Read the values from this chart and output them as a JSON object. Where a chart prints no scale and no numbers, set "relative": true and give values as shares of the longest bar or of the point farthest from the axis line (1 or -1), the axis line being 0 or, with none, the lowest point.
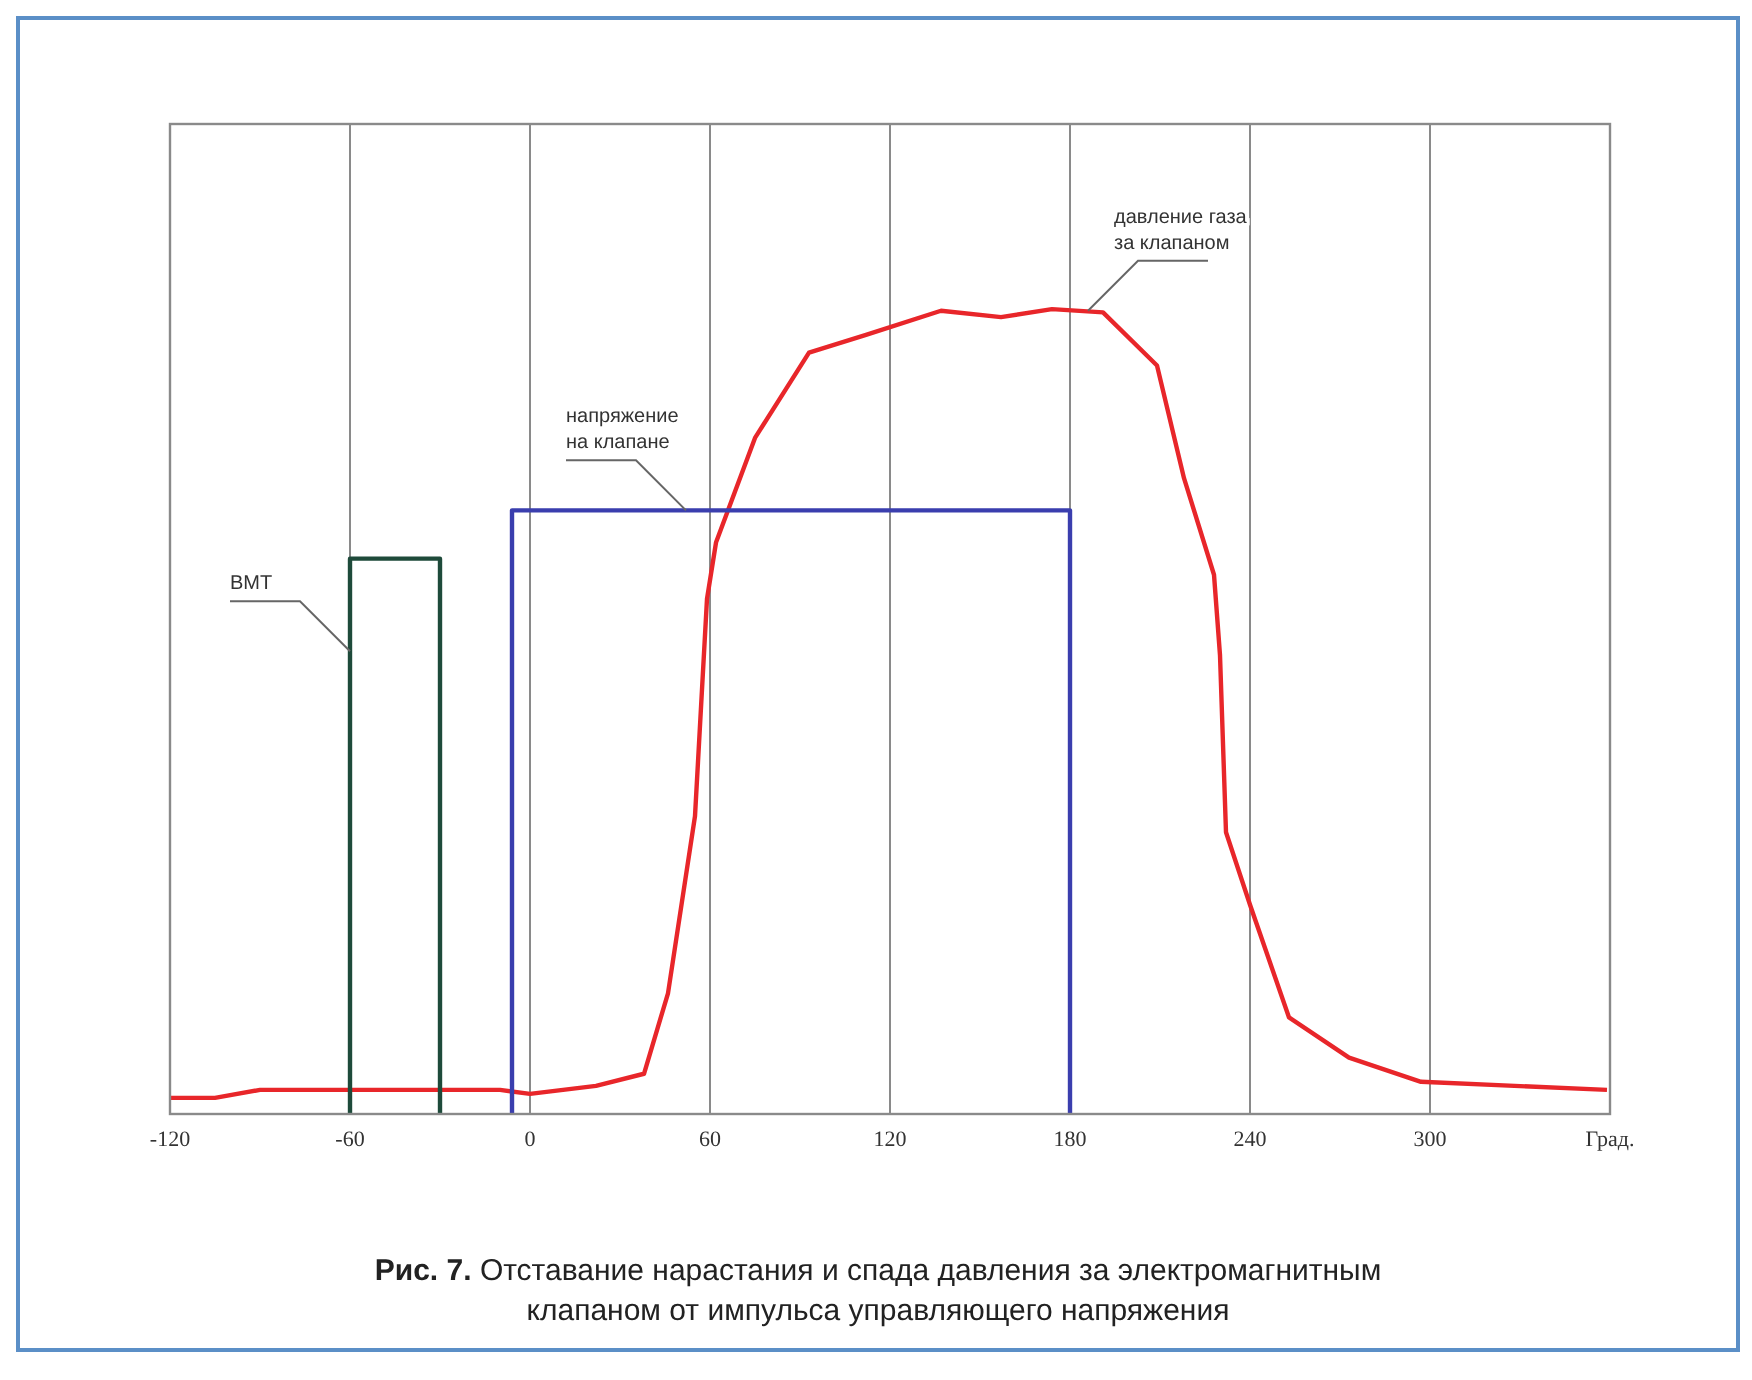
{
  "chart_data": {
    "type": "line",
    "title": "Рис. 7. Отставание нарастания и спада давления за электромагнитным клапаном от импульса управляющего напряжения",
    "relative": true,
    "xlim": [
      -120,
      360
    ],
    "xticks": [
      -120,
      -60,
      0,
      60,
      120,
      180,
      240,
      300,
      {
        "value": 360,
        "label": "Град."
      }
    ],
    "grid": "x",
    "marker": "none",
    "series": [
      {
        "color": "#e8262a",
        "x": [
          -120,
          -105,
          -90,
          -75,
          -60,
          -30,
          -10,
          0,
          22,
          38,
          46,
          55,
          59,
          62,
          75,
          93,
          112,
          137,
          157,
          174,
          191,
          209,
          218,
          228,
          230,
          232,
          240,
          253,
          273,
          297,
          359
        ],
        "values": [
          0.02,
          0.02,
          0.03,
          0.03,
          0.03,
          0.03,
          0.03,
          0.025,
          0.035,
          0.05,
          0.15,
          0.37,
          0.64,
          0.71,
          0.84,
          0.946,
          0.968,
          0.998,
          0.99,
          1,
          0.996,
          0.93,
          0.79,
          0.67,
          0.57,
          0.35,
          0.26,
          0.12,
          0.07,
          0.04,
          0.03
        ]
      },
      {
        "color": "#3a3eae",
        "x": [
          -6,
          -6,
          180,
          180
        ],
        "values": [
          0,
          0.75,
          0.75,
          0
        ]
      },
      {
        "color": "#1e4a3a",
        "x": [
          -60,
          -60,
          -30,
          -30
        ],
        "values": [
          0,
          0.69,
          0.69,
          0
        ]
      }
    ],
    "annotations": [
      {
        "text": "давление газа за клапаном",
        "x": 186,
        "y": 0.998
      },
      {
        "text": "напряжение на клапане",
        "x": 52,
        "y": 0.75
      },
      {
        "text": "ВМТ",
        "x": -60,
        "y": 0.575
      }
    ]
  }
}
